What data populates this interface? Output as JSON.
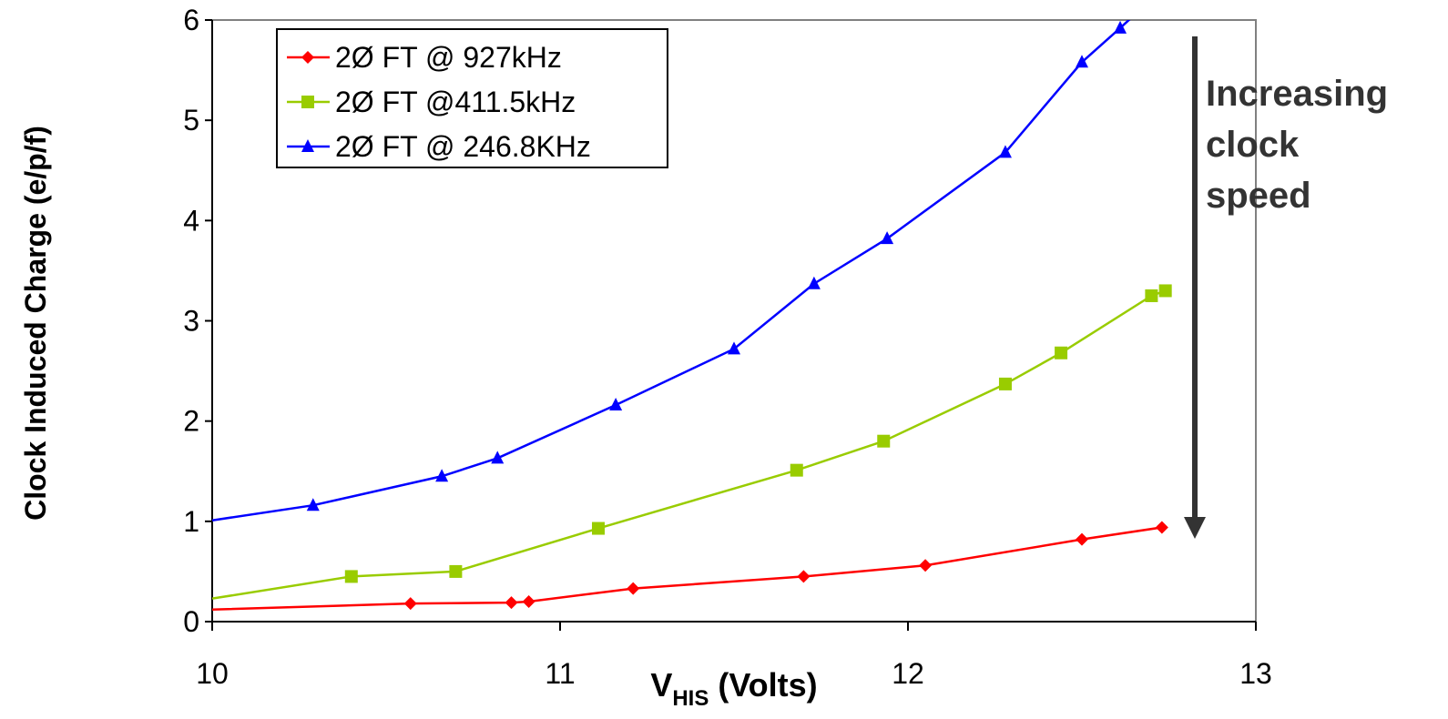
{
  "chart_data": {
    "type": "line",
    "xlabel_main": "V",
    "xlabel_sub": "HIS",
    "xlabel_rest": " (Volts)",
    "ylabel": "Clock Induced Charge (e/p/f)",
    "xlim": [
      10,
      13
    ],
    "ylim": [
      0,
      6
    ],
    "x_ticks": [
      "10",
      "11",
      "12",
      "13"
    ],
    "y_ticks": [
      "0",
      "1",
      "2",
      "3",
      "4",
      "5",
      "6"
    ],
    "grid": false,
    "legend_position": "top-left",
    "series": [
      {
        "name": "2Ø FT @ 927kHz",
        "color": "#ff0000",
        "marker": "diamond",
        "x": [
          10.0,
          10.57,
          10.86,
          10.91,
          11.21,
          11.7,
          12.05,
          12.5,
          12.73
        ],
        "y": [
          0.12,
          0.18,
          0.19,
          0.2,
          0.33,
          0.45,
          0.56,
          0.82,
          0.94
        ]
      },
      {
        "name": "2Ø FT @411.5kHz",
        "color": "#99cc00",
        "marker": "square",
        "x": [
          10.0,
          10.4,
          10.7,
          11.11,
          11.68,
          11.93,
          12.28,
          12.44,
          12.7,
          12.74
        ],
        "y": [
          0.23,
          0.45,
          0.5,
          0.93,
          1.51,
          1.8,
          2.37,
          2.68,
          3.25,
          3.3
        ]
      },
      {
        "name": "2Ø FT @ 246.8KHz",
        "color": "#0000ff",
        "marker": "triangle",
        "x": [
          10.0,
          10.29,
          10.66,
          10.82,
          11.16,
          11.5,
          11.73,
          11.94,
          12.28,
          12.5,
          12.61,
          12.66
        ],
        "y": [
          1.01,
          1.16,
          1.45,
          1.63,
          2.16,
          2.72,
          3.37,
          3.82,
          4.68,
          5.58,
          5.92,
          6.08
        ]
      }
    ],
    "annotation": {
      "lines": [
        "Increasing",
        "clock",
        "speed"
      ],
      "arrow_color": "#333333"
    }
  }
}
